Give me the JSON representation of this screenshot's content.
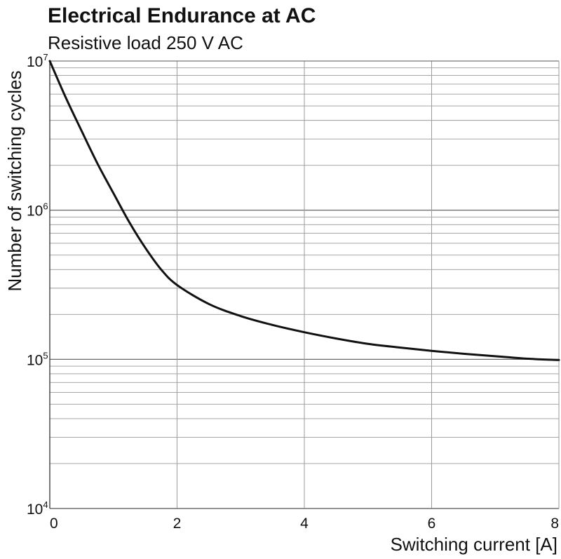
{
  "chart_data": {
    "type": "line",
    "title": "Electrical Endurance at AC",
    "subtitle": "Resistive load 250 V AC",
    "xlabel": "Switching current [A]",
    "ylabel": "Number of switching cycles",
    "xlim": [
      0,
      8
    ],
    "ylim": [
      10000,
      10000000
    ],
    "yscale": "log",
    "grid": true,
    "x_ticks": [
      0,
      2,
      4,
      6,
      8
    ],
    "x_tick_labels": [
      "0",
      "2",
      "4",
      "6",
      "8"
    ],
    "y_ticks": [
      {
        "value": 10000000,
        "base": "10",
        "exp": "7"
      },
      {
        "value": 1000000,
        "base": "10",
        "exp": "6"
      },
      {
        "value": 100000,
        "base": "10",
        "exp": "5"
      },
      {
        "value": 10000,
        "base": "10",
        "exp": "4"
      }
    ],
    "series": [
      {
        "name": "Resistive load 250 V AC",
        "color": "#111111",
        "x": [
          0,
          0.25,
          0.5,
          0.75,
          1.0,
          1.25,
          1.5,
          1.75,
          2.0,
          2.5,
          3.0,
          3.5,
          4.0,
          4.5,
          5.0,
          5.5,
          6.0,
          6.5,
          7.0,
          7.5,
          8.0
        ],
        "y": [
          10000000,
          5700000,
          3400000,
          2050000,
          1300000,
          830000,
          560000,
          400000,
          315000,
          235000,
          195000,
          170000,
          152000,
          138000,
          127000,
          120000,
          114000,
          109000,
          105000,
          101000,
          99000
        ]
      }
    ]
  }
}
